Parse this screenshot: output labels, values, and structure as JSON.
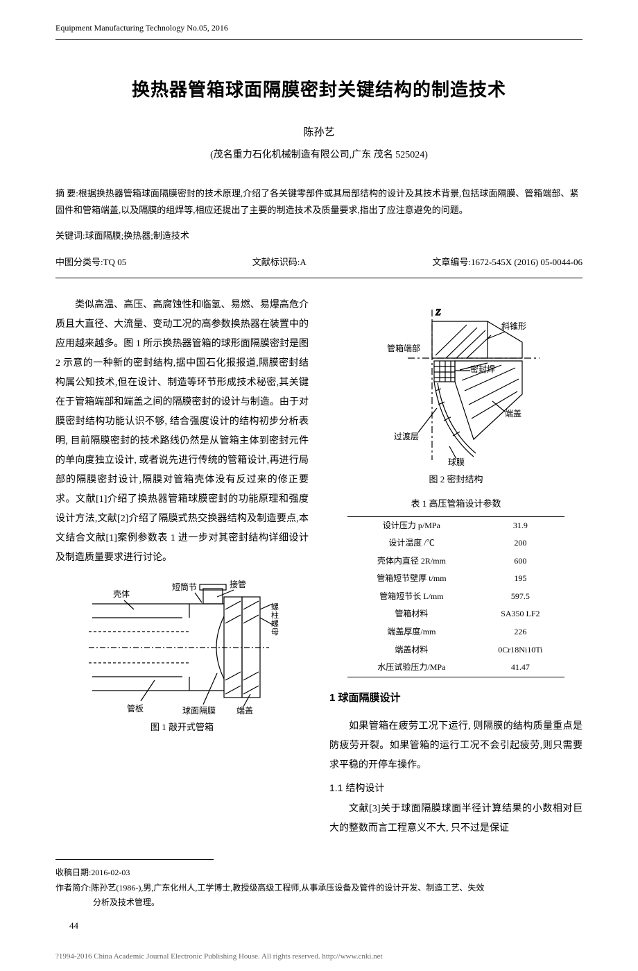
{
  "runningHeader": "Equipment  Manufacturing Technology No.05, 2016",
  "title": "换热器管箱球面隔膜密封关键结构的制造技术",
  "author": "陈孙艺",
  "affiliation": "(茂名重力石化机械制造有限公司,广东  茂名 525024)",
  "abstractLabel": "摘  要:",
  "abstractText": "根据换热器管箱球面隔膜密封的技术原理,介绍了各关键零部件或其局部结构的设计及其技术背景,包括球面隔膜、管箱端部、紧固件和管箱端盖,以及隔膜的组焊等,相应还提出了主要的制造技术及质量要求,指出了应注意避免的问题。",
  "keywordsLabel": "关键词:",
  "keywordsText": "球面隔膜;换热器;制造技术",
  "classify": {
    "clc": "中图分类号:TQ 05",
    "docCode": "文献标识码:A",
    "articleId": "文章编号:1672-545X (2016) 05-0044-06"
  },
  "leftBody": "类似高温、高压、高腐蚀性和临氢、易燃、易爆高危介质且大直径、大流量、变动工况的高参数换热器在装置中的应用越来越多。图 1 所示换热器管箱的球形面隔膜密封是图 2 示意的一种新的密封结构,据中国石化报报道,隔膜密封结构属公知技术,但在设计、制造等环节形成技术秘密,其关键在于管箱端部和端盖之间的隔膜密封的设计与制造。由于对膜密封结构功能认识不够, 结合强度设计的结构初步分析表明, 目前隔膜密封的技术路线仍然是从管箱主体到密封元件的单向度独立设计, 或者说先进行传统的管箱设计,再进行局部的隔膜密封设计,隔膜对管箱壳体没有反过来的修正要求。文献[1]介绍了换热器管箱球膜密封的功能原理和强度设计方法,文献[2]介绍了隔膜式热交换器结构及制造要点,本文结合文献[1]案例参数表 1 进一步对其密封结构详细设计及制造质量要求进行讨论。",
  "fig1": {
    "caption": "图 1  敲开式管箱",
    "labels": {
      "shell": "壳体",
      "short": "短筒节",
      "nozzle": "接管",
      "bolt": "螺柱螺母",
      "tubesheet": "管板",
      "diaphragm": "球面隔膜",
      "cover": "端盖"
    },
    "stroke": "#000000",
    "bg": "#ffffff"
  },
  "fig2": {
    "caption": "图 2  密封结构",
    "labels": {
      "z": "Z",
      "cone": "斜锥形",
      "end": "管箱端部",
      "sealWeld": "密封焊",
      "cover": "端盖",
      "transition": "过渡层",
      "sphere": "球膜"
    },
    "stroke": "#000000"
  },
  "table1": {
    "caption": "表 1  高压管箱设计参数",
    "rows": [
      {
        "label": "设计压力 p/MPa",
        "value": "31.9"
      },
      {
        "label": "设计温度 /℃",
        "value": "200"
      },
      {
        "label": "壳体内直径 2R/mm",
        "value": "600"
      },
      {
        "label": "管箱短节壁厚 t/mm",
        "value": "195"
      },
      {
        "label": "管箱短节长 L/mm",
        "value": "597.5"
      },
      {
        "label": "管箱材料",
        "value": "SA350 LF2"
      },
      {
        "label": "端盖厚度/mm",
        "value": "226"
      },
      {
        "label": "端盖材料",
        "value": "0Cr18Ni10Ti"
      },
      {
        "label": "水压试验压力/MPa",
        "value": "41.47"
      }
    ]
  },
  "section1": {
    "heading": "1  球面隔膜设计",
    "para": "如果管箱在疲劳工况下运行, 则隔膜的结构质量重点是防疲劳开裂。如果管箱的运行工况不会引起疲劳,则只需要求平稳的开停车操作。",
    "sub": "1.1  结构设计",
    "subPara": "文献[3]关于球面隔膜球面半径计算结果的小数相对巨大的整数而言工程意义不大, 只不过是保证"
  },
  "footer": {
    "received": "收稿日期:2016-02-03",
    "bioLabel": "作者简介:",
    "bio1": "陈孙艺(1986-),男,广东化州人,工学博士,教授级高级工程师,从事承压设备及管件的设计开发、制造工艺、失效",
    "bio2": "分析及技术管理。"
  },
  "pageNum": "44",
  "cnki": "?1994-2016 China Academic Journal Electronic Publishing House. All rights reserved.   http://www.cnki.net"
}
